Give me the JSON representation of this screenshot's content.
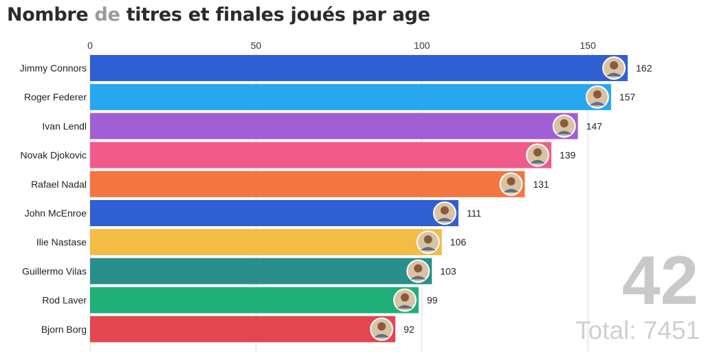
{
  "title": {
    "part1": "Nombre ",
    "part2": "de",
    "part3": " titres et finales joués par age"
  },
  "counter": {
    "age": "42",
    "total_label": "Total:",
    "total_value": "7451"
  },
  "colors": {
    "grid": "#dddddd",
    "counter": "#c9c9c9"
  },
  "chart_data": {
    "type": "bar",
    "orientation": "horizontal",
    "title": "Nombre de titres et finales joués par age",
    "xlim": [
      0,
      162
    ],
    "xticks": [
      0,
      50,
      100,
      150
    ],
    "categories": [
      "Jimmy Connors",
      "Roger Federer",
      "Ivan Lendl",
      "Novak Djokovic",
      "Rafael Nadal",
      "John McEnroe",
      "Ilie Nastase",
      "Guillermo Vilas",
      "Rod Laver",
      "Bjorn Borg"
    ],
    "values": [
      162,
      157,
      147,
      139,
      131,
      111,
      106,
      103,
      99,
      92
    ],
    "bar_colors": [
      "#2f5fd3",
      "#28a7f0",
      "#a25ed4",
      "#f05b8a",
      "#f57540",
      "#2f5fd3",
      "#f2bc45",
      "#2a8f8c",
      "#1fb07a",
      "#e2474f"
    ],
    "grid": true,
    "avatar_icons": true
  }
}
